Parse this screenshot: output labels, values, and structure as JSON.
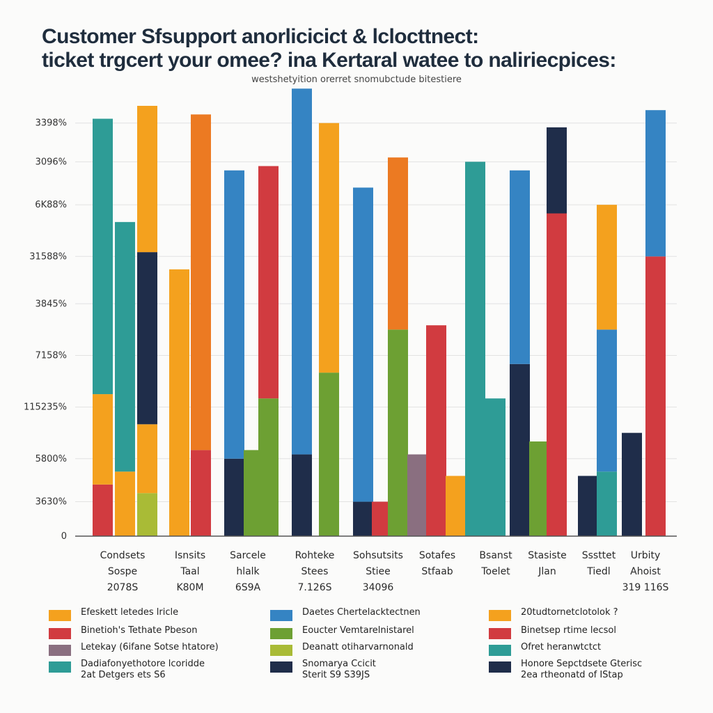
{
  "chart_data": {
    "type": "bar",
    "stacked": true,
    "title_lines": [
      "Customer Sfsupport anorlicicict & lclocttnect:",
      "ticket trgcert your omee? ina Kertaral watee to naliriecpices:"
    ],
    "subtitle": "westshetyition orerret snomubctude bitestiere",
    "y_ticks": [
      "0",
      "3630%",
      "5800%",
      "115235%",
      "7158%",
      "3845%",
      "31588%",
      "6K88%",
      "3096%",
      "3398%"
    ],
    "ylim": [
      0,
      100
    ],
    "grid": true,
    "legend_position": "bottom",
    "categories": [
      [
        "Condsets",
        "Sospe",
        "2078S"
      ],
      [
        "Isnsits",
        "Taal",
        "K80M"
      ],
      [
        "Sarcele",
        "hlalk",
        "6S9A"
      ],
      [
        "Rohteke",
        "Stees",
        "7.126S"
      ],
      [
        "Sohsutsits",
        "Stiee",
        "34096"
      ],
      [
        "Sotafes",
        "Stfaab",
        ""
      ],
      [
        "Bsanst",
        "Toelet",
        ""
      ],
      [
        "Stasiste",
        "Jlan",
        ""
      ],
      [
        "Sssttet",
        "Tiedl",
        ""
      ],
      [
        "Urbity",
        "Ahoist",
        "319 116S"
      ]
    ],
    "bars": [
      {
        "category": 0,
        "segments": [
          {
            "color": "#d13b40",
            "value": 12
          },
          {
            "color": "#f4a11e",
            "value": 21
          },
          {
            "color": "#2e9c96",
            "value": 64
          }
        ]
      },
      {
        "category": 0,
        "segments": [
          {
            "color": "#f4a11e",
            "value": 15
          },
          {
            "color": "#2e9c96",
            "value": 58
          }
        ]
      },
      {
        "category": 0,
        "segments": [
          {
            "color": "#a9bb36",
            "value": 10
          },
          {
            "color": "#f4a11e",
            "value": 16
          },
          {
            "color": "#1f2d4a",
            "value": 40
          },
          {
            "color": "#f4a11e",
            "value": 34
          }
        ]
      },
      {
        "category": 1,
        "segments": [
          {
            "color": "#f4a11e",
            "value": 62
          }
        ]
      },
      {
        "category": 1,
        "segments": [
          {
            "color": "#d13b40",
            "value": 20
          },
          {
            "color": "#ec7a22",
            "value": 78
          }
        ]
      },
      {
        "category": 2,
        "segments": [
          {
            "color": "#1f2d4a",
            "value": 18
          },
          {
            "color": "#3584c3",
            "value": 67
          }
        ]
      },
      {
        "category": 2,
        "segments": [
          {
            "color": "#6da033",
            "value": 20
          }
        ]
      },
      {
        "category": 2,
        "segments": [
          {
            "color": "#6da033",
            "value": 32
          },
          {
            "color": "#d13b40",
            "value": 54
          }
        ]
      },
      {
        "category": 3,
        "segments": [
          {
            "color": "#1f2d4a",
            "value": 19
          },
          {
            "color": "#3584c3",
            "value": 85
          }
        ]
      },
      {
        "category": 3,
        "segments": [
          {
            "color": "#6da033",
            "value": 38
          },
          {
            "color": "#f4a11e",
            "value": 58
          }
        ]
      },
      {
        "category": 4,
        "segments": [
          {
            "color": "#1f2d4a",
            "value": 8
          },
          {
            "color": "#3584c3",
            "value": 73
          }
        ]
      },
      {
        "category": 4,
        "segments": [
          {
            "color": "#d13b40",
            "value": 8
          }
        ]
      },
      {
        "category": 4,
        "segments": [
          {
            "color": "#6da033",
            "value": 48
          },
          {
            "color": "#ec7a22",
            "value": 40
          }
        ]
      },
      {
        "category": 5,
        "segments": [
          {
            "color": "#8a6f80",
            "value": 19
          }
        ]
      },
      {
        "category": 5,
        "segments": [
          {
            "color": "#d13b40",
            "value": 49
          }
        ]
      },
      {
        "category": 5,
        "segments": [
          {
            "color": "#f4a11e",
            "value": 14
          }
        ]
      },
      {
        "category": 6,
        "segments": [
          {
            "color": "#2e9c96",
            "value": 87
          }
        ]
      },
      {
        "category": 6,
        "segments": [
          {
            "color": "#2e9c96",
            "value": 32
          }
        ]
      },
      {
        "category": 7,
        "segments": [
          {
            "color": "#1f2d4a",
            "value": 40
          },
          {
            "color": "#3584c3",
            "value": 45
          }
        ]
      },
      {
        "category": 7,
        "segments": [
          {
            "color": "#6da033",
            "value": 22
          }
        ]
      },
      {
        "category": 7,
        "segments": [
          {
            "color": "#d13b40",
            "value": 75
          },
          {
            "color": "#1f2d4a",
            "value": 20
          }
        ]
      },
      {
        "category": 8,
        "segments": [
          {
            "color": "#1f2d4a",
            "value": 14
          }
        ]
      },
      {
        "category": 8,
        "segments": [
          {
            "color": "#2e9c96",
            "value": 15
          },
          {
            "color": "#3584c3",
            "value": 33
          },
          {
            "color": "#f4a11e",
            "value": 29
          }
        ]
      },
      {
        "category": 9,
        "segments": [
          {
            "color": "#1f2d4a",
            "value": 24
          }
        ]
      },
      {
        "category": 9,
        "segments": [
          {
            "color": "#d13b40",
            "value": 65
          },
          {
            "color": "#3584c3",
            "value": 34
          }
        ]
      }
    ],
    "legend": [
      {
        "color": "#f4a11e",
        "lines": [
          "Efeskett letedes lricle"
        ]
      },
      {
        "color": "#d13b40",
        "lines": [
          "Binetioh's Tethate Pbeson"
        ]
      },
      {
        "color": "#8a6f80",
        "lines": [
          "Letekay (6ifane Sotse htatore)"
        ]
      },
      {
        "color": "#2e9c96",
        "lines": [
          "Dadiafonyethotore lcoridde",
          "2at Detgers ets S6"
        ]
      },
      {
        "color": "#3584c3",
        "lines": [
          "Daetes Chertelacktectnen"
        ]
      },
      {
        "color": "#6da033",
        "lines": [
          "Eoucter Vemtarelnistarel"
        ]
      },
      {
        "color": "#a9bb36",
        "lines": [
          "Deanatt otiharvarnonald"
        ]
      },
      {
        "color": "#1f2d4a",
        "lines": [
          "Snomarya Ccicit",
          "Sterit S9 S39JS"
        ]
      },
      {
        "color": "#f4a11e",
        "lines": [
          "20tudtornetclotolok ?"
        ]
      },
      {
        "color": "#d13b40",
        "lines": [
          "Binetsep rtime lecsol"
        ]
      },
      {
        "color": "#2e9c96",
        "lines": [
          "Ofret heranwtctct"
        ]
      },
      {
        "color": "#1f2d4a",
        "lines": [
          "Honore Sepctdsete Gterisc",
          "2ea rtheonatd of IStap"
        ]
      }
    ]
  }
}
